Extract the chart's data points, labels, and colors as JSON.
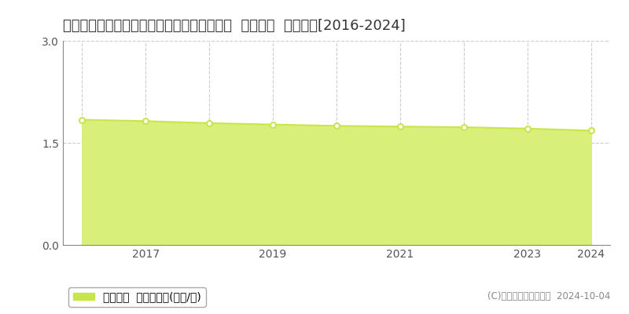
{
  "title": "奈良県吉野郡十津川村大字湯之原６４６番６  基準地価  地価推移[2016-2024]",
  "years": [
    2016,
    2017,
    2018,
    2019,
    2020,
    2021,
    2022,
    2023,
    2024
  ],
  "values": [
    1.84,
    1.82,
    1.79,
    1.77,
    1.75,
    1.74,
    1.73,
    1.71,
    1.68
  ],
  "line_color": "#c8e64c",
  "fill_color": "#d8f07a",
  "marker_color": "#ffffff",
  "marker_edge_color": "#c8e64c",
  "ylim": [
    0,
    3
  ],
  "yticks": [
    0,
    1.5,
    3
  ],
  "bg_color": "#ffffff",
  "grid_color": "#cccccc",
  "legend_label": "基準地価  平均坪単価(万円/坪)",
  "legend_color": "#c8e64c",
  "copyright_text": "(C)土地価格ドットコム  2024-10-04",
  "title_fontsize": 13,
  "tick_fontsize": 10,
  "legend_fontsize": 10,
  "copyright_fontsize": 8.5
}
